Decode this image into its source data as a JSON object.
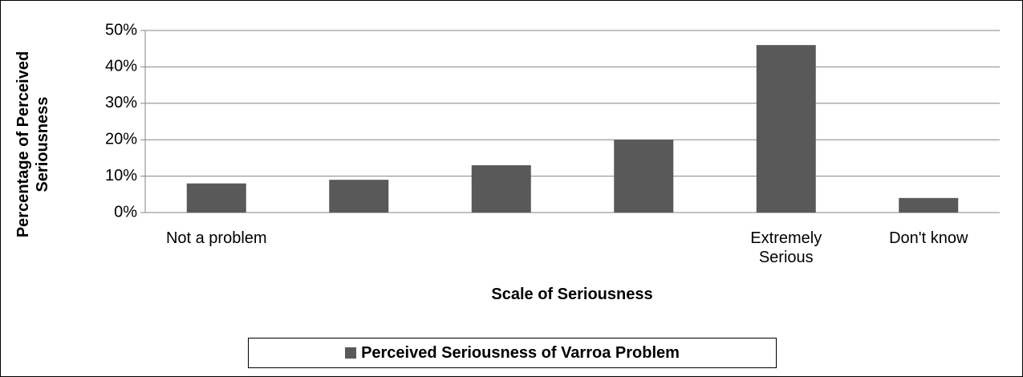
{
  "chart_data": {
    "type": "bar",
    "categories": [
      "Not a problem",
      null,
      null,
      null,
      "Extremely Serious",
      "Don't know"
    ],
    "series": [
      {
        "name": "Perceived Seriousness of Varroa Problem",
        "color": "#595959",
        "values": [
          8,
          9,
          13,
          20,
          46,
          4
        ]
      }
    ],
    "x_label": "Scale of Seriousness",
    "y_label": "Percentage of Perceived Seriousness",
    "ylim": [
      0,
      50
    ],
    "yticks": [
      {
        "value": 0,
        "label": "0%"
      },
      {
        "value": 10,
        "label": "10%"
      },
      {
        "value": 20,
        "label": "20%"
      },
      {
        "value": 30,
        "label": "30%"
      },
      {
        "value": 40,
        "label": "40%"
      },
      {
        "value": 50,
        "label": "50%"
      }
    ],
    "grid": true,
    "legend": "bottom"
  }
}
